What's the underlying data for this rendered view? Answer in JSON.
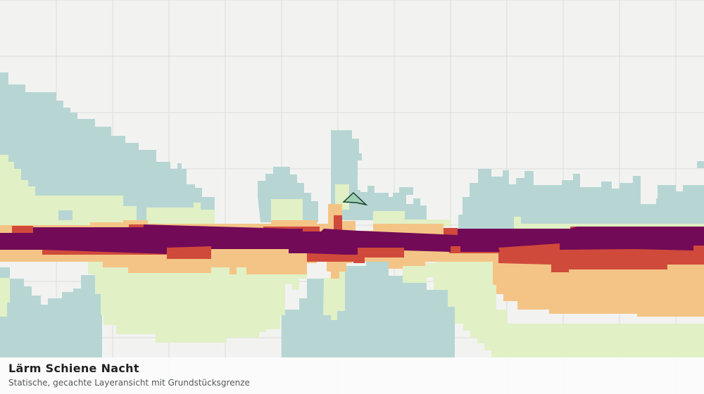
{
  "map": {
    "title": "Lärm Schiene Nacht",
    "subtitle": "Statische, gecachte Layeransicht mit Grundstücksgrenze"
  }
}
